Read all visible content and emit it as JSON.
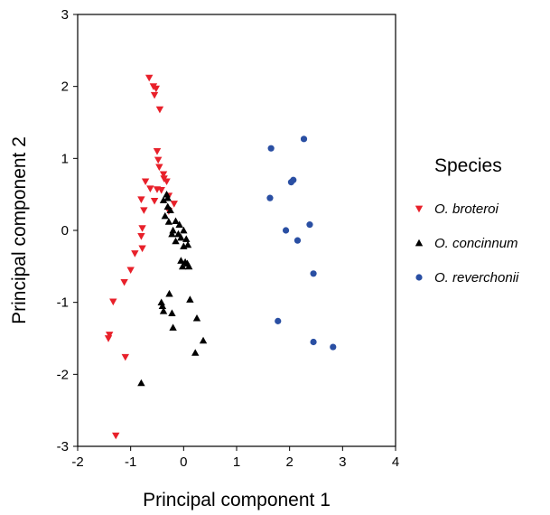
{
  "chart_data": {
    "type": "scatter",
    "title": "",
    "xlabel": "Principal component 1",
    "ylabel": "Principal component 2",
    "xlim": [
      -2,
      4
    ],
    "ylim": [
      -3,
      3
    ],
    "x_ticks": [
      -2,
      -1,
      0,
      1,
      2,
      3,
      4
    ],
    "y_ticks": [
      -3,
      -2,
      -1,
      0,
      1,
      2,
      3
    ],
    "grid": false,
    "legend": {
      "title": "Species",
      "position": "right"
    },
    "series": [
      {
        "name": "O. broteroi",
        "marker": "triangle-down",
        "color": "#e8202a",
        "points": [
          [
            -0.65,
            2.12
          ],
          [
            -0.57,
            2.0
          ],
          [
            -0.52,
            1.97
          ],
          [
            -0.55,
            1.88
          ],
          [
            -0.45,
            1.68
          ],
          [
            -0.5,
            1.1
          ],
          [
            -0.48,
            0.98
          ],
          [
            -0.46,
            0.88
          ],
          [
            -0.38,
            0.78
          ],
          [
            -0.37,
            0.72
          ],
          [
            -0.32,
            0.68
          ],
          [
            -0.72,
            0.68
          ],
          [
            -0.63,
            0.58
          ],
          [
            -0.5,
            0.57
          ],
          [
            -0.42,
            0.56
          ],
          [
            -0.28,
            0.48
          ],
          [
            -0.8,
            0.43
          ],
          [
            -0.55,
            0.41
          ],
          [
            -0.18,
            0.37
          ],
          [
            -0.75,
            0.28
          ],
          [
            -0.28,
            0.27
          ],
          [
            -0.78,
            0.03
          ],
          [
            -0.8,
            -0.08
          ],
          [
            -0.78,
            -0.25
          ],
          [
            -0.92,
            -0.32
          ],
          [
            -1.0,
            -0.55
          ],
          [
            -1.12,
            -0.72
          ],
          [
            -1.33,
            -0.99
          ],
          [
            -1.4,
            -1.45
          ],
          [
            -1.42,
            -1.5
          ],
          [
            -1.1,
            -1.76
          ],
          [
            -1.28,
            -2.85
          ]
        ]
      },
      {
        "name": "O. concinnum",
        "marker": "triangle-up",
        "color": "#000000",
        "points": [
          [
            -0.32,
            0.5
          ],
          [
            -0.3,
            0.45
          ],
          [
            -0.38,
            0.42
          ],
          [
            -0.3,
            0.33
          ],
          [
            -0.25,
            0.28
          ],
          [
            -0.35,
            0.2
          ],
          [
            -0.28,
            0.12
          ],
          [
            -0.15,
            0.13
          ],
          [
            -0.08,
            0.08
          ],
          [
            -0.2,
            0.0
          ],
          [
            0.0,
            0.0
          ],
          [
            -0.22,
            -0.05
          ],
          [
            -0.1,
            -0.05
          ],
          [
            -0.05,
            -0.1
          ],
          [
            0.05,
            -0.12
          ],
          [
            -0.15,
            -0.15
          ],
          [
            0.08,
            -0.2
          ],
          [
            0.0,
            -0.22
          ],
          [
            -0.05,
            -0.42
          ],
          [
            0.03,
            -0.44
          ],
          [
            0.07,
            -0.46
          ],
          [
            0.1,
            -0.5
          ],
          [
            -0.02,
            -0.5
          ],
          [
            -0.27,
            -0.88
          ],
          [
            0.12,
            -0.96
          ],
          [
            -0.42,
            -1.0
          ],
          [
            -0.4,
            -1.05
          ],
          [
            -0.38,
            -1.12
          ],
          [
            -0.22,
            -1.15
          ],
          [
            -0.2,
            -1.35
          ],
          [
            0.25,
            -1.22
          ],
          [
            0.37,
            -1.53
          ],
          [
            0.22,
            -1.7
          ],
          [
            -0.8,
            -2.12
          ]
        ]
      },
      {
        "name": "O. reverchonii",
        "marker": "circle",
        "color": "#2a4fa3",
        "points": [
          [
            1.65,
            1.14
          ],
          [
            2.27,
            1.27
          ],
          [
            2.07,
            0.7
          ],
          [
            2.03,
            0.67
          ],
          [
            1.63,
            0.45
          ],
          [
            2.38,
            0.08
          ],
          [
            1.93,
            0.0
          ],
          [
            2.15,
            -0.14
          ],
          [
            2.45,
            -0.6
          ],
          [
            1.78,
            -1.26
          ],
          [
            2.45,
            -1.55
          ],
          [
            2.82,
            -1.62
          ]
        ]
      }
    ]
  }
}
